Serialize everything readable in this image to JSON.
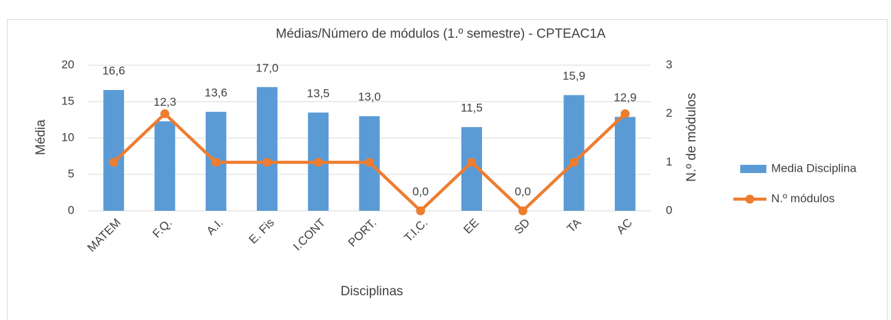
{
  "chart_data": {
    "type": "bar",
    "title": "Médias/Número de módulos (1.º semestre) - CPTEAC1A",
    "x_label": "Disciplinas",
    "y_label": "Média",
    "y2_label": "N.º de módulos",
    "categories": [
      "MATEM",
      "F.Q.",
      "A.I.",
      "E. Fis",
      "I.CONT",
      "PORT.",
      "T.I.C.",
      "EE",
      "SD",
      "TA",
      "AC"
    ],
    "series": [
      {
        "name": "Media Disciplina",
        "type": "bar",
        "color": "#5b9bd5",
        "values": [
          16.6,
          12.3,
          13.6,
          17.0,
          13.5,
          13.0,
          0.0,
          11.5,
          0.0,
          15.9,
          12.9
        ],
        "value_labels": [
          "16,6",
          "12,3",
          "13,6",
          "17,0",
          "13,5",
          "13,0",
          "0,0",
          "11,5",
          "0,0",
          "15,9",
          "12,9"
        ]
      },
      {
        "name": "N.º módulos",
        "type": "line",
        "axis": "y2",
        "color": "#ed7d31",
        "values": [
          1,
          2,
          1,
          1,
          1,
          1,
          0,
          1,
          0,
          1,
          2
        ]
      }
    ],
    "ylim": [
      0,
      20
    ],
    "yticks": [
      0,
      5,
      10,
      15,
      20
    ],
    "y2lim": [
      0,
      3
    ],
    "y2ticks": [
      0,
      1,
      2,
      3
    ],
    "grid": true,
    "legend": "right"
  }
}
